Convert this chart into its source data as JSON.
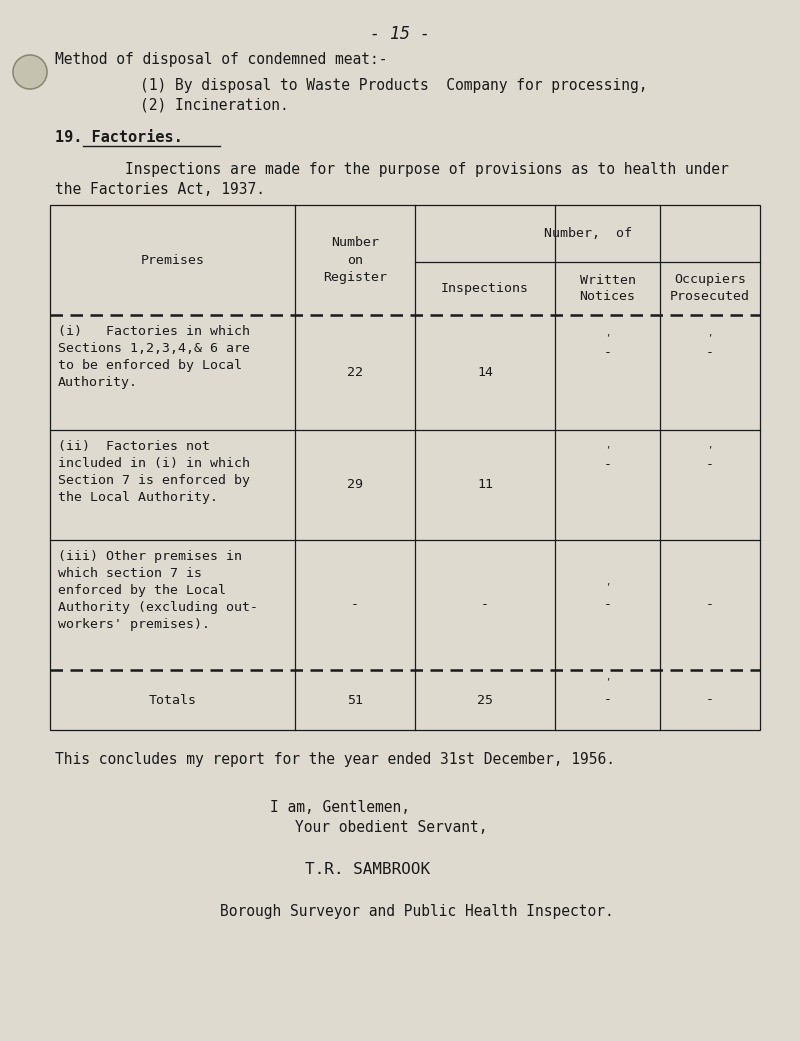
{
  "bg_color": "#dedad0",
  "text_color": "#1a1a1a",
  "page_header": "- 15 -",
  "line1": "Method of disposal of condemned meat:-",
  "line2": "(1) By disposal to Waste Products  Company for processing,",
  "line3": "(2) Incineration.",
  "section_header": "19. Factories.",
  "para1": "        Inspections are made for the purpose of provisions as to health under",
  "para2": "the Factories Act, 1937.",
  "row1_desc": "(i)   Factories in which\nSections 1,2,3,4,& 6 are\nto be enforced by Local\nAuthority.",
  "row1_vals": [
    "22",
    "14",
    "-",
    "-"
  ],
  "row2_desc": "(ii)  Factories not\nincluded in (i) in which\nSection 7 is enforced by\nthe Local Authority.",
  "row2_vals": [
    "29",
    "11",
    "-",
    "-"
  ],
  "row3_desc": "(iii) Other premises in\nwhich section 7 is\nenforced by the Local\nAuthority (excluding out-\nworkers' premises).",
  "row3_vals": [
    "-",
    "-",
    "-",
    "-"
  ],
  "totals_desc": "Totals",
  "totals_vals": [
    "51",
    "25",
    "-",
    "-"
  ],
  "closing1": "This concludes my report for the year ended 31st December, 1956.",
  "closing2": "I am, Gentlemen,",
  "closing3": "Your obedient Servant,",
  "closing4": "T.R. SAMBROOK",
  "closing5": "Borough Surveyor and Public Health Inspector."
}
